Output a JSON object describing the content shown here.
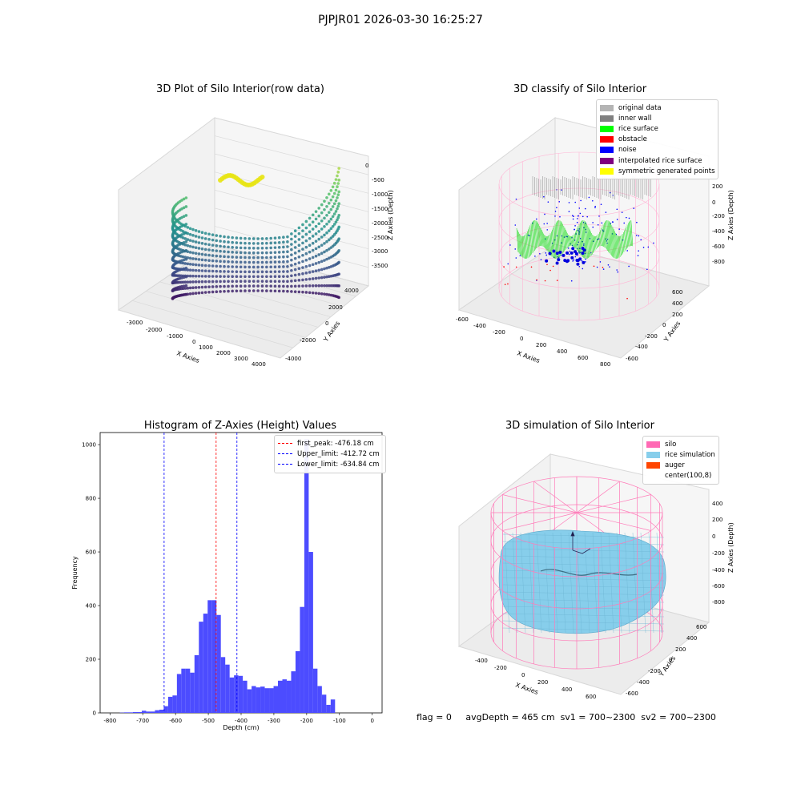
{
  "suptitle": "PJPJR01 2026-03-30 16:25:27",
  "panels": {
    "raw": {
      "title": "3D Plot of Silo Interior(row data)",
      "xlabel": "X Axies",
      "ylabel": "Y Axies",
      "zlabel": "Z Axies (Depth)",
      "xticks": [
        "-3000",
        "-2000",
        "-1000",
        "0",
        "1000",
        "2000",
        "3000",
        "4000"
      ],
      "yticks": [
        "4000",
        "2000",
        "0",
        "-2000",
        "-4000"
      ],
      "zticks": [
        "0",
        "-500",
        "-1000",
        "-1500",
        "-2000",
        "-2500",
        "-3000",
        "-3500"
      ]
    },
    "classify": {
      "title": "3D classify of Silo Interior",
      "xlabel": "X Axies",
      "ylabel": "Y Axies",
      "zlabel": "Z Axies (Depth)",
      "xticks": [
        "-600",
        "-400",
        "-200",
        "0",
        "200",
        "400",
        "600",
        "800"
      ],
      "yticks": [
        "600",
        "400",
        "200",
        "0",
        "-200",
        "-400",
        "-600"
      ],
      "zticks": [
        "200",
        "0",
        "-200",
        "-400",
        "-600",
        "-800"
      ],
      "legend": [
        {
          "label": "original data",
          "color": "#b4b4b4"
        },
        {
          "label": "inner wall",
          "color": "#808080"
        },
        {
          "label": "rice surface",
          "color": "#00ff00"
        },
        {
          "label": "obstacle",
          "color": "#ff0000"
        },
        {
          "label": "noise",
          "color": "#0000ff"
        },
        {
          "label": "interpolated rice surface",
          "color": "#800080"
        },
        {
          "label": "symmetric generated points",
          "color": "#ffff00"
        }
      ]
    },
    "simulation": {
      "title": "3D simulation of Silo Interior",
      "xlabel": "X Axies",
      "ylabel": "Y Axies",
      "zlabel": "Z Axies (Depth)",
      "xticks": [
        "-400",
        "-200",
        "0",
        "200",
        "400",
        "600"
      ],
      "yticks": [
        "600",
        "400",
        "200",
        "0",
        "-200",
        "-400",
        "-600"
      ],
      "zticks": [
        "400",
        "200",
        "0",
        "-200",
        "-400",
        "-600",
        "-800"
      ],
      "legend": [
        {
          "label": "silo",
          "color": "#ff69b4"
        },
        {
          "label": "rice simulation",
          "color": "#87ceeb"
        },
        {
          "label": "auger",
          "color": "#ff4500"
        },
        {
          "label": "center(100,8)",
          "color": "#ffffff"
        }
      ]
    }
  },
  "chart_data": {
    "type": "bar",
    "title": "Histogram of Z-Axies (Height) Values",
    "xlabel": "Depth (cm)",
    "ylabel": "Frequency",
    "xlim": [
      -830,
      30
    ],
    "ylim": [
      0,
      1045
    ],
    "xticks": [
      -800,
      -700,
      -600,
      -500,
      -400,
      -300,
      -200,
      -100,
      0
    ],
    "yticks": [
      0,
      200,
      400,
      600,
      800,
      1000
    ],
    "bin_width": 13.4,
    "bins": [
      {
        "start": -770,
        "count": 1
      },
      {
        "start": -756.6,
        "count": 2
      },
      {
        "start": -743.2,
        "count": 2
      },
      {
        "start": -729.8,
        "count": 3
      },
      {
        "start": -716.4,
        "count": 3
      },
      {
        "start": -703,
        "count": 8
      },
      {
        "start": -689.6,
        "count": 5
      },
      {
        "start": -676.2,
        "count": 5
      },
      {
        "start": -662.8,
        "count": 10
      },
      {
        "start": -649.4,
        "count": 12
      },
      {
        "start": -636,
        "count": 25
      },
      {
        "start": -622.6,
        "count": 60
      },
      {
        "start": -609.2,
        "count": 65
      },
      {
        "start": -595.8,
        "count": 145
      },
      {
        "start": -582.4,
        "count": 165
      },
      {
        "start": -569,
        "count": 165
      },
      {
        "start": -555.6,
        "count": 150
      },
      {
        "start": -542.2,
        "count": 215
      },
      {
        "start": -528.8,
        "count": 340
      },
      {
        "start": -515.4,
        "count": 370
      },
      {
        "start": -502,
        "count": 420
      },
      {
        "start": -488.6,
        "count": 420
      },
      {
        "start": -475.2,
        "count": 365
      },
      {
        "start": -461.8,
        "count": 208
      },
      {
        "start": -448.4,
        "count": 180
      },
      {
        "start": -435,
        "count": 132
      },
      {
        "start": -421.6,
        "count": 140
      },
      {
        "start": -408.2,
        "count": 138
      },
      {
        "start": -394.8,
        "count": 120
      },
      {
        "start": -381.4,
        "count": 88
      },
      {
        "start": -368,
        "count": 100
      },
      {
        "start": -354.6,
        "count": 95
      },
      {
        "start": -341.2,
        "count": 98
      },
      {
        "start": -327.8,
        "count": 92
      },
      {
        "start": -314.4,
        "count": 92
      },
      {
        "start": -301,
        "count": 100
      },
      {
        "start": -287.6,
        "count": 120
      },
      {
        "start": -274.2,
        "count": 125
      },
      {
        "start": -260.8,
        "count": 120
      },
      {
        "start": -247.4,
        "count": 155
      },
      {
        "start": -234,
        "count": 230
      },
      {
        "start": -220.6,
        "count": 395
      },
      {
        "start": -207.2,
        "count": 1020
      },
      {
        "start": -193.8,
        "count": 600
      },
      {
        "start": -180.4,
        "count": 165
      },
      {
        "start": -167,
        "count": 100
      },
      {
        "start": -153.6,
        "count": 68
      },
      {
        "start": -140.2,
        "count": 30
      },
      {
        "start": -126.8,
        "count": 50
      }
    ],
    "vlines": [
      {
        "x": -476.18,
        "color": "#ff0000",
        "label": "first_peak: -476.18 cm"
      },
      {
        "x": -412.72,
        "color": "#0000ff",
        "label": "Upper_limit: -412.72 cm"
      },
      {
        "x": -634.84,
        "color": "#0000ff",
        "label": "Lower_limit: -634.84 cm"
      }
    ],
    "bar_color": "#4c4cff"
  },
  "status": {
    "flag": "flag = 0",
    "avg": "avgDepth = 465 cm",
    "sv1": "sv1 = 700~2300",
    "sv2": "sv2 = 700~2300"
  }
}
